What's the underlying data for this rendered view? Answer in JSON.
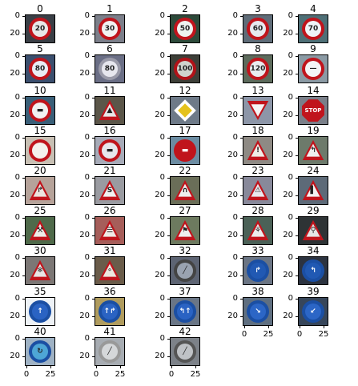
{
  "panels": [
    {
      "title": "0",
      "kind": "circle",
      "ring": "#c0141c",
      "fill": "#e8e8e8",
      "glyph": "20",
      "bg": "#3a3f46"
    },
    {
      "title": "1",
      "kind": "circle",
      "ring": "#c0141c",
      "fill": "#f2f2f2",
      "glyph": "30",
      "bg": "#7c7f8a"
    },
    {
      "title": "2",
      "kind": "circle",
      "ring": "#c0141c",
      "fill": "#eef3f0",
      "glyph": "50",
      "bg": "#2d4a3a"
    },
    {
      "title": "3",
      "kind": "circle",
      "ring": "#c0141c",
      "fill": "#e6e9ef",
      "glyph": "60",
      "bg": "#5f6c78"
    },
    {
      "title": "4",
      "kind": "circle",
      "ring": "#c0141c",
      "fill": "#eef4f8",
      "glyph": "70",
      "bg": "#4e6f76"
    },
    {
      "title": "5",
      "kind": "circle",
      "ring": "#c0141c",
      "fill": "#e9ecf4",
      "glyph": "80",
      "bg": "#3b4f6e"
    },
    {
      "title": "6",
      "kind": "circle",
      "ring": "#9a9aa8",
      "fill": "#e7e7ee",
      "glyph": "80",
      "bg": "#6b6f86"
    },
    {
      "title": "7",
      "kind": "circle",
      "ring": "#b01218",
      "fill": "#cfd3cc",
      "glyph": "100",
      "bg": "#3d3f38"
    },
    {
      "title": "8",
      "kind": "circle",
      "ring": "#c0141c",
      "fill": "#e9ecef",
      "glyph": "120",
      "bg": "#5d6b5c"
    },
    {
      "title": "9",
      "kind": "circle",
      "ring": "#c0141c",
      "fill": "#f3f4f6",
      "glyph": "—",
      "bg": "#8b9aa4"
    },
    {
      "title": "10",
      "kind": "circle",
      "ring": "#c0141c",
      "fill": "#f1f1f1",
      "glyph": "▬",
      "bg": "#3a5f78"
    },
    {
      "title": "11",
      "kind": "tri",
      "ring": "#c0141c",
      "fill": "#e7e7e7",
      "glyph": "▲",
      "bg": "#5b5649"
    },
    {
      "title": "12",
      "kind": "dia",
      "ring": "#ffffff",
      "fill": "#e5c21c",
      "glyph": "",
      "bg": "#6e7a88"
    },
    {
      "title": "13",
      "kind": "inv",
      "ring": "#c0141c",
      "fill": "#f4f4f4",
      "glyph": "",
      "bg": "#8d96a8"
    },
    {
      "title": "14",
      "kind": "oct",
      "ring": "#c0141c",
      "fill": "#c0141c",
      "glyph": "STOP",
      "bg": "#7a7f89"
    },
    {
      "title": "15",
      "kind": "circle",
      "ring": "#c0141c",
      "fill": "#f4f1ec",
      "glyph": "",
      "bg": "#c8c0b4"
    },
    {
      "title": "16",
      "kind": "circle",
      "ring": "#c0141c",
      "fill": "#e7e7ec",
      "glyph": "▬",
      "bg": "#a7abb8"
    },
    {
      "title": "17",
      "kind": "circle",
      "ring": "#c0141c",
      "fill": "#c0141c",
      "glyph": "▬",
      "bg": "#6c8ca2"
    },
    {
      "title": "18",
      "kind": "tri",
      "ring": "#c0141c",
      "fill": "#f0ece6",
      "glyph": "!",
      "bg": "#8e8a84"
    },
    {
      "title": "19",
      "kind": "tri",
      "ring": "#c0141c",
      "fill": "#eeeeee",
      "glyph": "↰",
      "bg": "#6d7a6b"
    },
    {
      "title": "20",
      "kind": "tri",
      "ring": "#c0141c",
      "fill": "#ece3de",
      "glyph": "↱",
      "bg": "#b6a39a"
    },
    {
      "title": "21",
      "kind": "tri",
      "ring": "#c0141c",
      "fill": "#f1f1f1",
      "glyph": "S",
      "bg": "#9a9ba1"
    },
    {
      "title": "22",
      "kind": "tri",
      "ring": "#c0141c",
      "fill": "#eeeeee",
      "glyph": "∩",
      "bg": "#6a6e58"
    },
    {
      "title": "23",
      "kind": "tri",
      "ring": "#c0141c",
      "fill": "#e9e9ee",
      "glyph": "⚠",
      "bg": "#88899a"
    },
    {
      "title": "24",
      "kind": "tri",
      "ring": "#c0141c",
      "fill": "#f2f2f2",
      "glyph": "▌",
      "bg": "#5d6a78"
    },
    {
      "title": "25",
      "kind": "tri",
      "ring": "#c0141c",
      "fill": "#eeece8",
      "glyph": "⚒",
      "bg": "#4f6a4a"
    },
    {
      "title": "26",
      "kind": "tri",
      "ring": "#c0141c",
      "fill": "#f0eae6",
      "glyph": "☰",
      "bg": "#a65e5a"
    },
    {
      "title": "27",
      "kind": "tri",
      "ring": "#c0141c",
      "fill": "#efefef",
      "glyph": "⚑",
      "bg": "#6d7a5f"
    },
    {
      "title": "28",
      "kind": "tri",
      "ring": "#c0141c",
      "fill": "#ececec",
      "glyph": "⚘",
      "bg": "#4b6157"
    },
    {
      "title": "29",
      "kind": "tri",
      "ring": "#c0141c",
      "fill": "#e5e5e5",
      "glyph": "⚲",
      "bg": "#2e3335"
    },
    {
      "title": "30",
      "kind": "tri",
      "ring": "#c0141c",
      "fill": "#e8e5e5",
      "glyph": "❄",
      "bg": "#7c7775"
    },
    {
      "title": "31",
      "kind": "tri",
      "ring": "#c0141c",
      "fill": "#ece7de",
      "glyph": "⚬",
      "bg": "#6a5c4a"
    },
    {
      "title": "32",
      "kind": "circle",
      "ring": "#444444",
      "fill": "#9aa3b1",
      "glyph": "╱",
      "bg": "#5d6473"
    },
    {
      "title": "33",
      "kind": "circle",
      "ring": "#1b4fa3",
      "fill": "#2159b3",
      "glyph": "↱",
      "bg": "#6b7584"
    },
    {
      "title": "34",
      "kind": "circle",
      "ring": "#1b4fa3",
      "fill": "#2159b3",
      "glyph": "↰",
      "bg": "#2c3340"
    },
    {
      "title": "35",
      "kind": "circle",
      "ring": "#1b4fa3",
      "fill": "#2a63c3",
      "glyph": "↑",
      "bg": "#eef2f6"
    },
    {
      "title": "36",
      "kind": "circle",
      "ring": "#1b4fa3",
      "fill": "#2a63c3",
      "glyph": "↑↱",
      "bg": "#b09c5e"
    },
    {
      "title": "37",
      "kind": "circle",
      "ring": "#1b4fa3",
      "fill": "#2a63c3",
      "glyph": "↰↑",
      "bg": "#6a7686"
    },
    {
      "title": "38",
      "kind": "circle",
      "ring": "#1b4fa3",
      "fill": "#2c66c6",
      "glyph": "↘",
      "bg": "#5f6f80"
    },
    {
      "title": "39",
      "kind": "circle",
      "ring": "#1b4fa3",
      "fill": "#2c66c6",
      "glyph": "↙",
      "bg": "#37465a"
    },
    {
      "title": "40",
      "kind": "circle",
      "ring": "#1b4fa3",
      "fill": "#4ea6d6",
      "glyph": "↻",
      "bg": "#9fb2c4"
    },
    {
      "title": "41",
      "kind": "circle",
      "ring": "#999999",
      "fill": "#d5d7d9",
      "glyph": "╱",
      "bg": "#a7acb2"
    },
    {
      "title": "42",
      "kind": "circle",
      "ring": "#555555",
      "fill": "#bfc2c6",
      "glyph": "╱",
      "bg": "#7d8289"
    }
  ],
  "axes": {
    "yticks": [
      "0",
      "20"
    ],
    "xticks": [
      "0",
      "25"
    ]
  }
}
